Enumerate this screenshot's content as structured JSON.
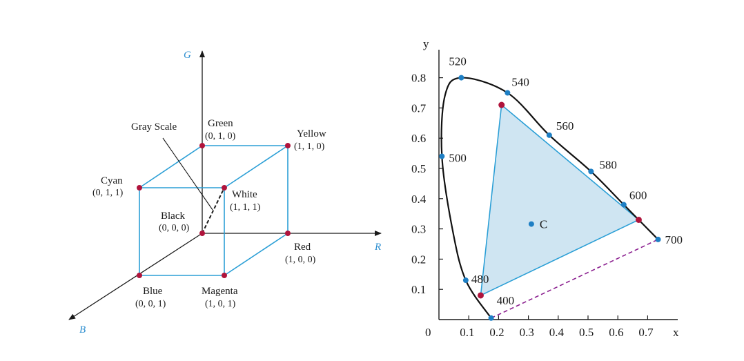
{
  "colors": {
    "axis_name": "#2e8fd0",
    "cube_edge": "#2b9fd6",
    "cube_vertex": "#b0143c",
    "axis": "#1a1a1a",
    "gamut_fill": "#cfe5f2",
    "gamut_edge": "#2b9fd6",
    "locus": "#111111",
    "locus_point": "#1e7fc4",
    "primary_point": "#b0143c",
    "purple_line": "#8b1f8f"
  },
  "rgb_cube": {
    "axes": {
      "r": "R",
      "g": "G",
      "b": "B"
    },
    "gray_scale_label": "Gray Scale",
    "vertices": [
      {
        "id": "black",
        "name": "Black",
        "coord": "(0, 0, 0)"
      },
      {
        "id": "red",
        "name": "Red",
        "coord": "(1, 0, 0)"
      },
      {
        "id": "green",
        "name": "Green",
        "coord": "(0, 1, 0)"
      },
      {
        "id": "blue",
        "name": "Blue",
        "coord": "(0, 0, 1)"
      },
      {
        "id": "yellow",
        "name": "Yellow",
        "coord": "(1, 1, 0)"
      },
      {
        "id": "cyan",
        "name": "Cyan",
        "coord": "(0, 1, 1)"
      },
      {
        "id": "magenta",
        "name": "Magenta",
        "coord": "(1, 0, 1)"
      },
      {
        "id": "white",
        "name": "White",
        "coord": "(1, 1, 1)"
      }
    ]
  },
  "chromaticity": {
    "x_axis_label": "x",
    "y_axis_label": "y",
    "origin_label": "0",
    "x_ticks": [
      "0.1",
      "0.2",
      "0.3",
      "0.4",
      "0.5",
      "0.6",
      "0.7"
    ],
    "y_ticks": [
      "0.1",
      "0.2",
      "0.3",
      "0.4",
      "0.5",
      "0.6",
      "0.7",
      "0.8"
    ],
    "white_point_label": "C",
    "locus_points": [
      {
        "nm": "400",
        "x": 0.175,
        "y": 0.005
      },
      {
        "nm": "480",
        "x": 0.09,
        "y": 0.13
      },
      {
        "nm": "500",
        "x": 0.01,
        "y": 0.54
      },
      {
        "nm": "520",
        "x": 0.075,
        "y": 0.8
      },
      {
        "nm": "540",
        "x": 0.23,
        "y": 0.75
      },
      {
        "nm": "560",
        "x": 0.37,
        "y": 0.61
      },
      {
        "nm": "580",
        "x": 0.51,
        "y": 0.49
      },
      {
        "nm": "600",
        "x": 0.62,
        "y": 0.38
      },
      {
        "nm": "700",
        "x": 0.735,
        "y": 0.265
      }
    ],
    "primaries": [
      {
        "name": "red",
        "x": 0.67,
        "y": 0.33
      },
      {
        "name": "green",
        "x": 0.21,
        "y": 0.71
      },
      {
        "name": "blue",
        "x": 0.14,
        "y": 0.08
      }
    ],
    "white_point": {
      "x": 0.31,
      "y": 0.316
    }
  }
}
